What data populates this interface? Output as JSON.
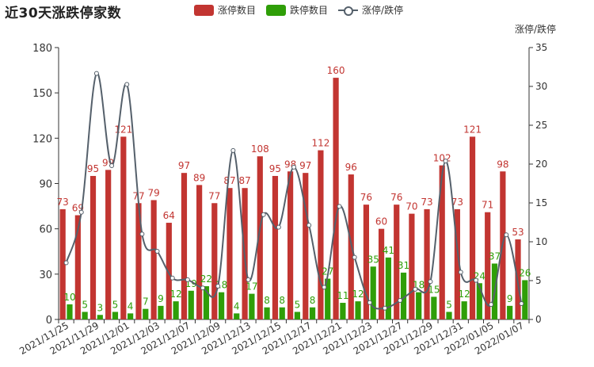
{
  "title": "近30天涨跌停家数",
  "legend": [
    {
      "name": "涨停数目",
      "type": "bar",
      "color": "#c23531"
    },
    {
      "name": "跌停数目",
      "type": "bar",
      "color": "#2f9e08"
    },
    {
      "name": "涨停/跌停",
      "type": "line",
      "color": "#55606b"
    }
  ],
  "chart_data": {
    "type": "bar",
    "title": "近30天涨跌停家数",
    "categories": [
      "2021/11/25",
      "2021/11/26",
      "2021/11/29",
      "2021/11/30",
      "2021/12/01",
      "2021/12/02",
      "2021/12/03",
      "2021/12/06",
      "2021/12/07",
      "2021/12/08",
      "2021/12/09",
      "2021/12/10",
      "2021/12/13",
      "2021/12/14",
      "2021/12/15",
      "2021/12/16",
      "2021/12/17",
      "2021/12/20",
      "2021/12/21",
      "2021/12/22",
      "2021/12/23",
      "2021/12/24",
      "2021/12/27",
      "2021/12/28",
      "2021/12/29",
      "2021/12/30",
      "2021/12/31",
      "2022/01/04",
      "2022/01/05",
      "2022/01/06",
      "2022/01/07"
    ],
    "x_tick_labels": [
      "2021/11/25",
      "2021/11/29",
      "2021/12/01",
      "2021/12/03",
      "2021/12/07",
      "2021/12/09",
      "2021/12/13",
      "2021/12/15",
      "2021/12/17",
      "2021/12/21",
      "2021/12/23",
      "2021/12/27",
      "2021/12/29",
      "2021/12/31",
      "2022/01/05",
      "2022/01/07"
    ],
    "series": [
      {
        "name": "涨停数目",
        "type": "bar",
        "axis": "left",
        "values": [
          73,
          69,
          95,
          99,
          121,
          77,
          79,
          64,
          97,
          89,
          77,
          87,
          87,
          108,
          95,
          98,
          97,
          112,
          160,
          96,
          76,
          60,
          76,
          70,
          73,
          102,
          73,
          121,
          71,
          98,
          53
        ]
      },
      {
        "name": "跌停数目",
        "type": "bar",
        "axis": "left",
        "values": [
          10,
          5,
          3,
          5,
          4,
          7,
          9,
          12,
          19,
          22,
          18,
          4,
          17,
          8,
          8,
          5,
          8,
          27,
          11,
          12,
          35,
          41,
          31,
          18,
          15,
          5,
          12,
          24,
          37,
          9,
          26
        ]
      },
      {
        "name": "涨停/跌停",
        "type": "line",
        "axis": "right",
        "smooth": true,
        "values": [
          7.3,
          13.8,
          31.67,
          19.8,
          30.25,
          11.0,
          8.78,
          5.33,
          5.11,
          4.05,
          4.28,
          21.75,
          5.12,
          13.5,
          11.88,
          19.6,
          12.13,
          4.15,
          14.55,
          8.0,
          2.17,
          1.46,
          2.45,
          3.89,
          4.87,
          20.4,
          6.08,
          5.04,
          1.92,
          10.89,
          2.04
        ]
      }
    ],
    "y_left": {
      "min": 0,
      "max": 180,
      "ticks": [
        0,
        30,
        60,
        90,
        120,
        150,
        180
      ]
    },
    "y_right": {
      "min": 0,
      "max": 35,
      "ticks": [
        0,
        5,
        10,
        15,
        20,
        25,
        30,
        35
      ],
      "label": "涨停/跌停"
    },
    "legend_position": "top"
  }
}
